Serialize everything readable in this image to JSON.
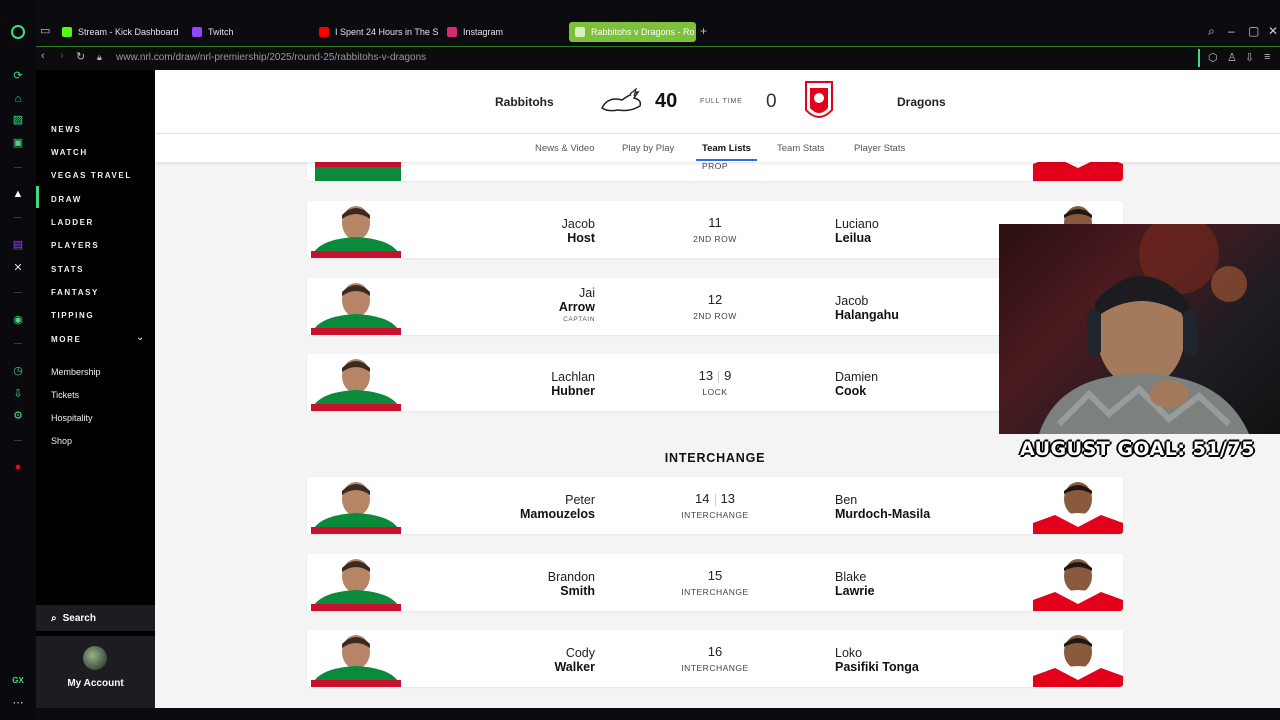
{
  "browser": {
    "tabs": [
      {
        "label": "Stream - Kick Dashboard",
        "color": "#53fc18"
      },
      {
        "label": "Twitch",
        "color": "#9146ff"
      },
      {
        "label": "I Spent 24 Hours in The S",
        "color": "#ff0000"
      },
      {
        "label": "Instagram",
        "color": "#d62976"
      },
      {
        "label": "Rabbitohs v Dragons - Ro",
        "color": "#7dc03c"
      }
    ],
    "url": "www.nrl.com/draw/nrl-premiership/2025/round-25/rabbitohs-v-dragons",
    "accent": "#3ddc84"
  },
  "sidebar": {
    "nav": [
      "NEWS",
      "WATCH",
      "VEGAS TRAVEL",
      "DRAW",
      "LADDER",
      "PLAYERS",
      "STATS",
      "FANTASY",
      "TIPPING",
      "MORE"
    ],
    "active": "DRAW",
    "sub": [
      "Membership",
      "Tickets",
      "Hospitality",
      "Shop"
    ],
    "search_label": "Search",
    "account_label": "My Account"
  },
  "match": {
    "home_team": "Rabbitohs",
    "away_team": "Dragons",
    "home_score": "40",
    "away_score": "0",
    "status": "FULL TIME",
    "home_color": "#0a8a3a",
    "away_color": "#e2001a"
  },
  "content_tabs": [
    "News & Video",
    "Play by Play",
    "Team Lists",
    "Team Stats",
    "Player Stats"
  ],
  "active_tab": "Team Lists",
  "partial_row": {
    "position": "PROP"
  },
  "starters": [
    {
      "home_first": "Jacob",
      "home_last": "Host",
      "home_note": "",
      "number": "11",
      "number_away": "",
      "position": "2ND ROW",
      "away_first": "Luciano",
      "away_last": "Leilua"
    },
    {
      "home_first": "Jai",
      "home_last": "Arrow",
      "home_note": "CAPTAIN",
      "number": "12",
      "number_away": "",
      "position": "2ND ROW",
      "away_first": "Jacob",
      "away_last": "Halangahu"
    },
    {
      "home_first": "Lachlan",
      "home_last": "Hubner",
      "home_note": "",
      "number": "13",
      "number_away": "9",
      "position": "LOCK",
      "away_first": "Damien",
      "away_last": "Cook"
    }
  ],
  "interchange_heading": "INTERCHANGE",
  "interchange": [
    {
      "home_first": "Peter",
      "home_last": "Mamouzelos",
      "number": "14",
      "number_away": "13",
      "position": "INTERCHANGE",
      "away_first": "Ben",
      "away_last": "Murdoch-Masila"
    },
    {
      "home_first": "Brandon",
      "home_last": "Smith",
      "number": "15",
      "number_away": "",
      "position": "INTERCHANGE",
      "away_first": "Blake",
      "away_last": "Lawrie"
    },
    {
      "home_first": "Cody",
      "home_last": "Walker",
      "number": "16",
      "number_away": "",
      "position": "INTERCHANGE",
      "away_first": "Loko",
      "away_last": "Pasifiki Tonga"
    }
  ],
  "overlay": {
    "goal_text": "AUGUST GOAL: 51/75"
  }
}
